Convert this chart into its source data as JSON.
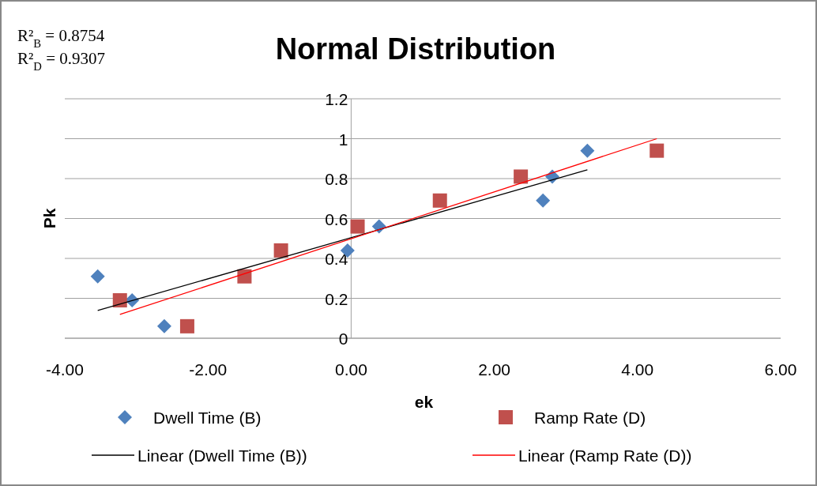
{
  "chart_data": {
    "type": "scatter",
    "title": "Normal Distribution",
    "xlabel": "ek",
    "ylabel": "Pk",
    "annotations": [
      "R²$_{B}$ = 0.8754",
      "R²$_{D}$ = 0.9307"
    ],
    "series": [
      {
        "name": "Dwell Time (B)",
        "marker": "diamond",
        "color": "#4f81bd",
        "x": [
          -3.54,
          -3.06,
          -2.61,
          -0.05,
          0.39,
          2.68,
          2.81,
          3.3
        ],
        "values": [
          0.31,
          0.19,
          0.06,
          0.44,
          0.56,
          0.69,
          0.81,
          0.94
        ]
      },
      {
        "name": "Ramp Rate (D)",
        "marker": "square",
        "color": "#c0504d",
        "x": [
          -3.23,
          -2.29,
          -1.49,
          -0.98,
          0.09,
          1.24,
          2.37,
          4.27
        ],
        "values": [
          0.19,
          0.06,
          0.31,
          0.44,
          0.56,
          0.69,
          0.81,
          0.94
        ]
      },
      {
        "name": "Linear (Dwell Time (B))",
        "type": "line",
        "marker": "none",
        "color": "#000000",
        "x": [
          -3.54,
          3.3
        ],
        "values": [
          0.139,
          0.844
        ]
      },
      {
        "name": "Linear (Ramp Rate (D))",
        "type": "line",
        "marker": "none",
        "color": "#ff0000",
        "x": [
          -3.23,
          4.27
        ],
        "values": [
          0.119,
          1.0
        ]
      }
    ],
    "xlim": [
      -4,
      6
    ],
    "xticks": [
      {
        "value": -4,
        "label": "-4.00"
      },
      {
        "value": -2,
        "label": "-2.00"
      },
      {
        "value": 0,
        "label": "0.00"
      },
      {
        "value": 2,
        "label": "2.00"
      },
      {
        "value": 4,
        "label": "4.00"
      },
      {
        "value": 6,
        "label": "6.00"
      }
    ],
    "ylim": [
      0,
      1.2
    ],
    "yticks": [
      0,
      0.2,
      0.4,
      0.6,
      0.8,
      1,
      1.2
    ],
    "grid": "y",
    "legend": "bottom"
  }
}
